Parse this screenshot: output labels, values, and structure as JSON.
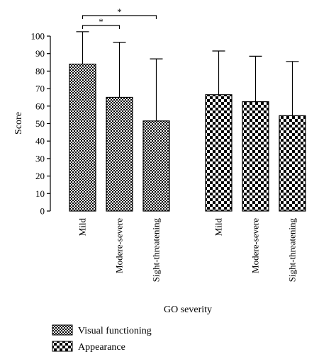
{
  "chart_data": {
    "type": "bar",
    "title": "",
    "xlabel": "GO severity",
    "ylabel": "Score",
    "ylim": [
      0,
      100
    ],
    "yticks": [
      0,
      10,
      20,
      30,
      40,
      50,
      60,
      70,
      80,
      90,
      100
    ],
    "grid": false,
    "legend_placement": "bottom-left",
    "categories": [
      "Mild",
      "Modere-severe",
      "Sight-threatening"
    ],
    "category_labels": [
      "Mild",
      "Modere-severe",
      "Sight-threatening"
    ],
    "series": [
      {
        "name": "Visual functioning",
        "pattern": "fine-checker",
        "values": [
          84,
          65,
          51.5
        ],
        "error_upper": [
          102.5,
          96.5,
          87
        ]
      },
      {
        "name": "Appearance",
        "pattern": "coarse-checker",
        "values": [
          66.5,
          62.5,
          54.5
        ],
        "error_upper": [
          91.5,
          88.5,
          85.5
        ]
      }
    ],
    "annotations": [
      {
        "type": "significance",
        "series": 0,
        "from": 0,
        "to": 1,
        "label": "*"
      },
      {
        "type": "significance",
        "series": 0,
        "from": 0,
        "to": 2,
        "label": "*"
      }
    ],
    "colors": {
      "fill": "#000000",
      "background": "#ffffff",
      "stroke": "#000000"
    }
  }
}
